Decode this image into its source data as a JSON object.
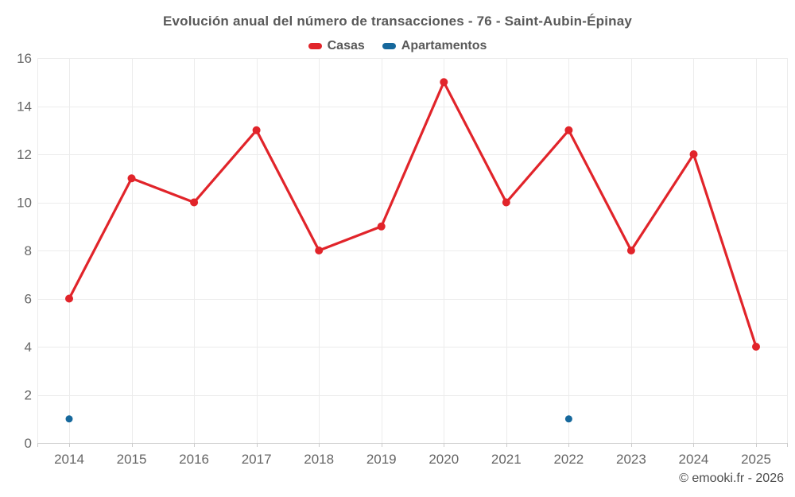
{
  "page": {
    "title": "Evolución anual del número de transacciones - 76 - Saint-Aubin-Épinay",
    "watermark": "© emooki.fr - 2026"
  },
  "legend": {
    "items": [
      {
        "label": "Casas",
        "color": "#e1242a"
      },
      {
        "label": "Apartamentos",
        "color": "#16689c"
      }
    ]
  },
  "chart_data": {
    "type": "line",
    "title": "Evolución anual del número de transacciones - 76 - Saint-Aubin-Épinay",
    "categories": [
      "2014",
      "2015",
      "2016",
      "2017",
      "2018",
      "2019",
      "2020",
      "2021",
      "2022",
      "2023",
      "2024",
      "2025"
    ],
    "series": [
      {
        "name": "Casas",
        "color": "#e1242a",
        "marker_radius": 5,
        "line_width": 3.2,
        "values": [
          6,
          11,
          10,
          13,
          8,
          9,
          15,
          10,
          13,
          8,
          12,
          4
        ]
      },
      {
        "name": "Apartamentos",
        "color": "#16689c",
        "marker_radius": 4.5,
        "line_width": 3,
        "values": [
          1,
          null,
          null,
          null,
          null,
          null,
          null,
          null,
          1,
          null,
          null,
          null
        ]
      }
    ],
    "xlabel": "",
    "ylabel": "",
    "ylim": [
      0,
      16
    ],
    "ytick_step": 2,
    "grid": true,
    "legend_position": "top"
  },
  "style": {
    "grid_color": "#ececec",
    "axis_color": "#cccccc",
    "axis_text_color": "#666666"
  }
}
